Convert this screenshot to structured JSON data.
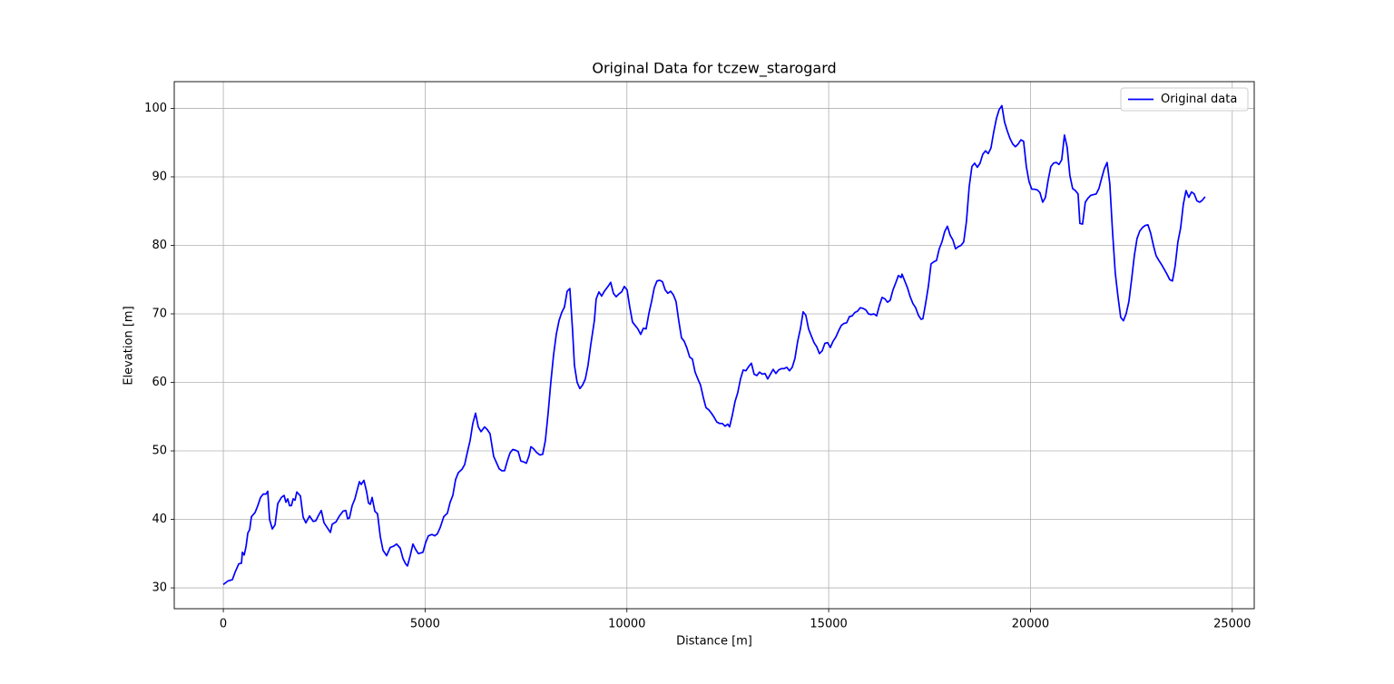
{
  "chart_data": {
    "type": "line",
    "title": "Original Data for tczew_starogard",
    "x_label": "Distance [m]",
    "y_label": "Elevation [m]",
    "x": [
      0,
      112,
      225,
      292,
      382,
      450,
      472,
      517,
      562,
      607,
      652,
      697,
      787,
      854,
      922,
      989,
      1057,
      1101,
      1146,
      1214,
      1281,
      1349,
      1439,
      1506,
      1551,
      1596,
      1641,
      1686,
      1731,
      1776,
      1821,
      1911,
      1978,
      2046,
      2136,
      2226,
      2293,
      2360,
      2428,
      2495,
      2563,
      2653,
      2698,
      2788,
      2877,
      2967,
      3035,
      3080,
      3125,
      3192,
      3260,
      3327,
      3372,
      3417,
      3484,
      3552,
      3597,
      3642,
      3687,
      3754,
      3822,
      3889,
      3956,
      4046,
      4136,
      4226,
      4293,
      4383,
      4451,
      4518,
      4563,
      4631,
      4698,
      4766,
      4833,
      4946,
      5013,
      5081,
      5170,
      5238,
      5305,
      5373,
      5463,
      5552,
      5620,
      5687,
      5755,
      5822,
      5912,
      5980,
      6047,
      6115,
      6182,
      6250,
      6317,
      6385,
      6474,
      6542,
      6609,
      6699,
      6767,
      6834,
      6901,
      6969,
      7036,
      7104,
      7171,
      7239,
      7306,
      7374,
      7441,
      7509,
      7576,
      7621,
      7689,
      7756,
      7846,
      7913,
      7980,
      8048,
      8115,
      8183,
      8250,
      8318,
      8385,
      8453,
      8520,
      8587,
      8655,
      8700,
      8767,
      8835,
      8902,
      8970,
      9037,
      9105,
      9194,
      9239,
      9307,
      9374,
      9442,
      9532,
      9599,
      9666,
      9734,
      9801,
      9869,
      9936,
      10004,
      10071,
      10139,
      10206,
      10273,
      10341,
      10408,
      10476,
      10543,
      10611,
      10678,
      10746,
      10813,
      10881,
      10948,
      11016,
      11083,
      11150,
      11218,
      11285,
      11353,
      11420,
      11488,
      11555,
      11623,
      11690,
      11758,
      11825,
      11893,
      11960,
      12027,
      12095,
      12162,
      12230,
      12297,
      12365,
      12432,
      12500,
      12545,
      12612,
      12680,
      12747,
      12815,
      12882,
      12950,
      13017,
      13085,
      13152,
      13220,
      13287,
      13355,
      13422,
      13490,
      13557,
      13625,
      13692,
      13759,
      13827,
      13894,
      13962,
      14029,
      14097,
      14164,
      14232,
      14299,
      14367,
      14434,
      14502,
      14569,
      14637,
      14704,
      14771,
      14839,
      14906,
      14974,
      15041,
      15109,
      15176,
      15244,
      15311,
      15379,
      15446,
      15514,
      15581,
      15648,
      15716,
      15783,
      15851,
      15918,
      15986,
      16053,
      16121,
      16188,
      16256,
      16323,
      16391,
      16458,
      16525,
      16593,
      16660,
      16728,
      16795,
      16818,
      16885,
      16953,
      17020,
      17088,
      17155,
      17223,
      17290,
      17335,
      17402,
      17470,
      17537,
      17605,
      17672,
      17740,
      17807,
      17874,
      17942,
      18009,
      18077,
      18144,
      18212,
      18279,
      18346,
      18414,
      18481,
      18549,
      18616,
      18684,
      18751,
      18819,
      18886,
      18954,
      19021,
      19088,
      19156,
      19223,
      19291,
      19358,
      19426,
      19493,
      19561,
      19628,
      19696,
      19763,
      19830,
      19898,
      19965,
      20033,
      20100,
      20168,
      20235,
      20303,
      20370,
      20438,
      20505,
      20572,
      20640,
      20707,
      20775,
      20842,
      20910,
      20977,
      21045,
      21112,
      21180,
      21225,
      21291,
      21359,
      21427,
      21494,
      21562,
      21629,
      21697,
      21764,
      21831,
      21899,
      21966,
      22034,
      22101,
      22169,
      22236,
      22304,
      22371,
      22439,
      22506,
      22574,
      22641,
      22709,
      22776,
      22843,
      22911,
      22978,
      23046,
      23113,
      23181,
      23248,
      23316,
      23383,
      23451,
      23518,
      23585,
      23653,
      23720,
      23788,
      23855,
      23923,
      23990,
      24058,
      24125,
      24193,
      24260,
      24328
    ],
    "series": [
      {
        "name": "Original data",
        "color": "#0000ff",
        "values": [
          30.5,
          31,
          31.2,
          32.3,
          33.5,
          33.6,
          35.2,
          34.8,
          36,
          38,
          38.5,
          40.4,
          41,
          42,
          43.2,
          43.7,
          43.7,
          44.1,
          40,
          38.6,
          39.2,
          42.3,
          43.2,
          43.5,
          42.5,
          43,
          42,
          42,
          43,
          42.8,
          44,
          43.4,
          40.3,
          39.5,
          40.5,
          39.7,
          39.8,
          40.6,
          41.3,
          39.5,
          38.9,
          38.1,
          39.3,
          39.6,
          40.5,
          41.2,
          41.3,
          40.1,
          40.2,
          42,
          43,
          44.5,
          45.5,
          45.1,
          45.7,
          44,
          42.4,
          42.2,
          43.2,
          41.2,
          40.8,
          37.5,
          35.5,
          34.7,
          35.9,
          36.1,
          36.4,
          35.8,
          34.3,
          33.5,
          33.2,
          34.7,
          36.4,
          35.6,
          35,
          35.2,
          36.6,
          37.6,
          37.8,
          37.6,
          37.9,
          38.8,
          40.4,
          40.9,
          42.5,
          43.5,
          45.8,
          46.8,
          47.3,
          48,
          49.8,
          51.5,
          54,
          55.5,
          53.5,
          52.8,
          53.5,
          53.1,
          52.5,
          49.2,
          48.3,
          47.4,
          47.1,
          47.1,
          48.5,
          49.7,
          50.2,
          50.1,
          49.9,
          48.5,
          48.4,
          48.2,
          49.3,
          50.6,
          50.3,
          49.8,
          49.4,
          49.5,
          51.5,
          55.5,
          60,
          64,
          67,
          69,
          70.2,
          71,
          73.3,
          73.7,
          67.5,
          62.5,
          60,
          59.1,
          59.6,
          60.5,
          62.5,
          65.5,
          69,
          72.2,
          73.2,
          72.6,
          73.3,
          74,
          74.6,
          73,
          72.5,
          72.9,
          73.2,
          74,
          73.5,
          71,
          68.8,
          68.3,
          67.8,
          67,
          67.9,
          67.8,
          70,
          71.8,
          73.8,
          74.8,
          74.9,
          74.7,
          73.5,
          73,
          73.3,
          72.8,
          71.8,
          69,
          66.5,
          66,
          65,
          63.7,
          63.4,
          61.5,
          60.5,
          59.6,
          57.8,
          56.3,
          56,
          55.5,
          54.9,
          54.2,
          54,
          54,
          53.6,
          53.9,
          53.5,
          55.2,
          57.2,
          58.5,
          60.5,
          61.8,
          61.7,
          62.3,
          62.8,
          61.2,
          61,
          61.5,
          61.2,
          61.3,
          60.5,
          61.2,
          61.9,
          61.3,
          61.8,
          62,
          62,
          62.2,
          61.7,
          62.2,
          63.5,
          66,
          67.8,
          70.3,
          69.8,
          67.8,
          66.8,
          65.8,
          65.2,
          64.2,
          64.6,
          65.7,
          65.8,
          65.1,
          66,
          66.6,
          67.5,
          68.3,
          68.6,
          68.7,
          69.6,
          69.7,
          70.2,
          70.4,
          70.9,
          70.8,
          70.6,
          70,
          69.9,
          70,
          69.7,
          71.2,
          72.4,
          72.2,
          71.7,
          72,
          73.5,
          74.5,
          75.6,
          75.3,
          75.8,
          74.8,
          73.8,
          72.5,
          71.5,
          70.9,
          69.8,
          69.2,
          69.3,
          71.5,
          74,
          77.3,
          77.6,
          77.8,
          79.5,
          80.5,
          82,
          82.8,
          81.5,
          80.8,
          79.5,
          79.8,
          80,
          80.5,
          83.5,
          88.5,
          91.5,
          92,
          91.4,
          92,
          93.3,
          93.8,
          93.4,
          94.2,
          96.5,
          98.5,
          99.8,
          100.4,
          98,
          96.7,
          95.6,
          94.8,
          94.4,
          94.8,
          95.4,
          95.2,
          91.5,
          89.3,
          88.2,
          88.2,
          88.1,
          87.7,
          86.3,
          87,
          89.5,
          91.5,
          92,
          92.1,
          91.8,
          92.5,
          96.1,
          94.3,
          90.2,
          88.3,
          88,
          87.5,
          83.2,
          83.1,
          86.3,
          86.9,
          87.3,
          87.4,
          87.5,
          88.3,
          89.8,
          91.2,
          92.1,
          89,
          82,
          76,
          72.5,
          69.5,
          69,
          70,
          71.8,
          75,
          78.5,
          81,
          82.1,
          82.6,
          82.9,
          83,
          81.8,
          80,
          78.5,
          77.8,
          77.2,
          76.5,
          75.8,
          75,
          74.8,
          77,
          80.5,
          82.5,
          86,
          88,
          87,
          87.8,
          87.5,
          86.5,
          86.3,
          86.6,
          87.1
        ]
      }
    ],
    "xlim": [
      -1216,
      25545
    ],
    "xticks": [
      0,
      5000,
      10000,
      15000,
      20000,
      25000
    ],
    "ylim": [
      26.96,
      103.9
    ],
    "yticks": [
      30,
      40,
      50,
      60,
      70,
      80,
      90,
      100
    ],
    "grid": true,
    "legend": "upper right"
  }
}
